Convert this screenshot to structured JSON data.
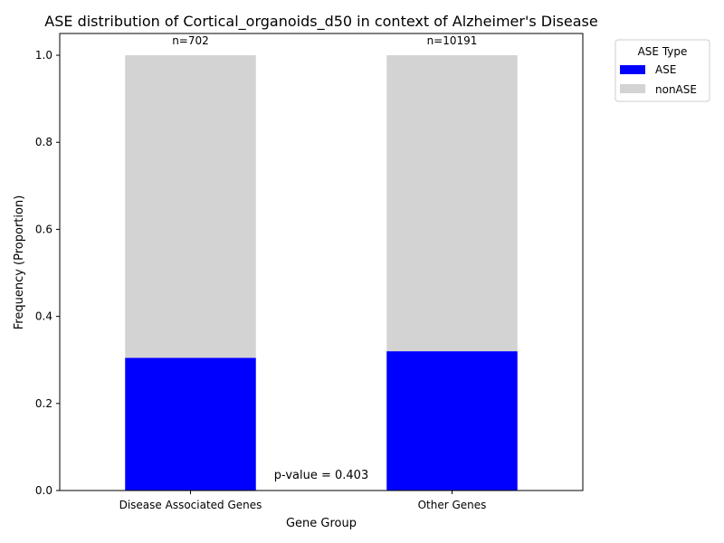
{
  "chart_data": {
    "type": "bar",
    "stacked": true,
    "title": "ASE distribution of Cortical_organoids_d50 in context of Alzheimer's Disease",
    "xlabel": "Gene Group",
    "ylabel": "Frequency (Proportion)",
    "categories": [
      "Disease Associated Genes",
      "Other Genes"
    ],
    "series": [
      {
        "name": "ASE",
        "values": [
          0.305,
          0.32
        ],
        "color": "#0000ff"
      },
      {
        "name": "nonASE",
        "values": [
          0.695,
          0.68
        ],
        "color": "#d3d3d3"
      }
    ],
    "counts": [
      "n=702",
      "n=10191"
    ],
    "ylim": [
      0,
      1.05
    ],
    "yticks": [
      "0.0",
      "0.2",
      "0.4",
      "0.6",
      "0.8",
      "1.0"
    ],
    "grid": false,
    "legend": {
      "title": "ASE Type",
      "placement": "outside top-right"
    },
    "annotation": "p-value = 0.403"
  }
}
